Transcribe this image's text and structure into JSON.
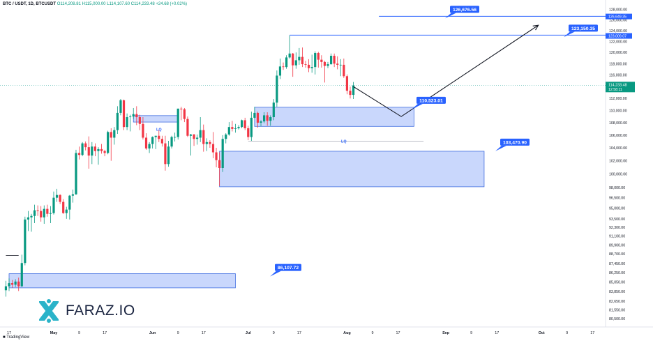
{
  "header": {
    "symbol": "BTC / USDT, 1D, BTCUSDT",
    "ohlc": "O114,208.81 H115,000.00 L114,107.60 C114,233.48 +24.68 (+0.02%)"
  },
  "brand": {
    "logo_text": "FARAZ.IO",
    "footer": "TradingView"
  },
  "chart_data": {
    "type": "candlestick",
    "y_scale": "log",
    "ylim": [
      80500,
      128200
    ],
    "y_ticks": [
      "128,000.00",
      "126,000.00",
      "124,000.00",
      "122,000.00",
      "120,000.00",
      "118,000.00",
      "116,000.00",
      "114,000.00",
      "112,000.00",
      "110,000.00",
      "108,000.00",
      "106,000.00",
      "104,000.00",
      "102,000.00",
      "100,000.00",
      "98,000.00",
      "96,500.00",
      "95,000.00",
      "93,500.00",
      "92,300.00",
      "91,100.00",
      "89,900.00",
      "88,700.00",
      "87,450.00",
      "86,250.00",
      "85,050.00",
      "83,850.00",
      "82,650.00",
      "81,550.00",
      "80,500.00"
    ],
    "y_tick_values": [
      128000,
      126000,
      124000,
      122000,
      120000,
      118000,
      116000,
      114000,
      112000,
      110000,
      108000,
      106000,
      104000,
      102000,
      100000,
      98000,
      96500,
      95000,
      93500,
      92300,
      91100,
      89900,
      88700,
      87450,
      86250,
      85050,
      83850,
      82650,
      81550,
      80500
    ],
    "x_ticks": [
      "17",
      "May",
      "9",
      "17",
      "Jun",
      "9",
      "17",
      "Jul",
      "9",
      "17",
      "Aug",
      "9",
      "17",
      "Sep",
      "9",
      "17",
      "Oct",
      "9",
      "17"
    ],
    "x_tick_dates": [
      "2025-04-17",
      "2025-05-01",
      "2025-05-09",
      "2025-05-17",
      "2025-06-01",
      "2025-06-09",
      "2025-06-17",
      "2025-07-01",
      "2025-07-09",
      "2025-07-17",
      "2025-08-01",
      "2025-08-09",
      "2025-08-17",
      "2025-09-01",
      "2025-09-09",
      "2025-09-17",
      "2025-10-01",
      "2025-10-09",
      "2025-10-17"
    ],
    "price_badge": {
      "value": "114,233.48",
      "countdown": "12:58:11",
      "price": 114233.48
    },
    "axis_labels": [
      {
        "text": "126,649.35",
        "value": 126649.35
      },
      {
        "text": "123,009.07",
        "value": 123009.07
      }
    ],
    "levels": [
      {
        "label": "126,676.56",
        "price": 126676.56,
        "from": "2025-08-11",
        "to": "2025-10-25"
      },
      {
        "label": "123,150.35",
        "price": 123150.35,
        "from": "2025-07-14",
        "to": "2025-10-25"
      }
    ],
    "zones": [
      {
        "label": "110,523.01",
        "top": 110523.01,
        "bottom": 107400,
        "from": "2025-07-03",
        "to": "2025-08-22"
      },
      {
        "label": "103,470.90",
        "top": 103470.9,
        "bottom": 98100,
        "from": "2025-06-22",
        "to": "2025-09-13"
      },
      {
        "label": "86,107.72",
        "top": 86107.72,
        "bottom": 84300,
        "from": "2025-04-17",
        "to": "2025-06-27"
      },
      {
        "label": "",
        "top": 109150,
        "bottom": 108100,
        "from": "2025-05-26",
        "to": "2025-06-09"
      }
    ],
    "lq_marks": [
      {
        "label": "LQ",
        "date": "2025-06-03",
        "price": 106920
      },
      {
        "label": "LQ",
        "date": "2025-07-31",
        "price": 105050
      }
    ],
    "lq_line": {
      "price": 105050,
      "from": "2025-07-01",
      "to": "2025-08-25"
    },
    "current_line": {
      "price": 114233.48
    },
    "left_line": {
      "price": 88500,
      "from": "2025-04-16",
      "to": "2025-04-20"
    },
    "projection": [
      {
        "date": "2025-08-03",
        "price": 114000
      },
      {
        "date": "2025-08-18",
        "price": 109000
      },
      {
        "date": "2025-09-30",
        "price": 125000
      }
    ],
    "candles": [
      {
        "d": "2025-04-16",
        "o": 84000,
        "h": 85200,
        "l": 83200,
        "c": 84500
      },
      {
        "d": "2025-04-17",
        "o": 84500,
        "h": 85500,
        "l": 83900,
        "c": 84900
      },
      {
        "d": "2025-04-18",
        "o": 84900,
        "h": 85300,
        "l": 84300,
        "c": 84700
      },
      {
        "d": "2025-04-19",
        "o": 84700,
        "h": 85400,
        "l": 84400,
        "c": 85100
      },
      {
        "d": "2025-04-20",
        "o": 85100,
        "h": 85600,
        "l": 83900,
        "c": 84500
      },
      {
        "d": "2025-04-21",
        "o": 84500,
        "h": 88600,
        "l": 84400,
        "c": 87500
      },
      {
        "d": "2025-04-22",
        "o": 87500,
        "h": 93800,
        "l": 87200,
        "c": 93400
      },
      {
        "d": "2025-04-23",
        "o": 93400,
        "h": 94600,
        "l": 91800,
        "c": 93700
      },
      {
        "d": "2025-04-24",
        "o": 93700,
        "h": 94200,
        "l": 91700,
        "c": 93900
      },
      {
        "d": "2025-04-25",
        "o": 93900,
        "h": 95500,
        "l": 92900,
        "c": 94700
      },
      {
        "d": "2025-04-26",
        "o": 94700,
        "h": 95400,
        "l": 93900,
        "c": 94600
      },
      {
        "d": "2025-04-27",
        "o": 94600,
        "h": 95300,
        "l": 93100,
        "c": 93700
      },
      {
        "d": "2025-04-28",
        "o": 93700,
        "h": 95400,
        "l": 92800,
        "c": 94900
      },
      {
        "d": "2025-04-29",
        "o": 94900,
        "h": 95500,
        "l": 93800,
        "c": 94200
      },
      {
        "d": "2025-04-30",
        "o": 94200,
        "h": 95300,
        "l": 92900,
        "c": 94300
      },
      {
        "d": "2025-05-01",
        "o": 94300,
        "h": 97400,
        "l": 94100,
        "c": 96500
      },
      {
        "d": "2025-05-02",
        "o": 96500,
        "h": 97800,
        "l": 95900,
        "c": 96900
      },
      {
        "d": "2025-05-03",
        "o": 96900,
        "h": 97000,
        "l": 95600,
        "c": 95900
      },
      {
        "d": "2025-05-04",
        "o": 95900,
        "h": 96300,
        "l": 94200,
        "c": 94300
      },
      {
        "d": "2025-05-05",
        "o": 94300,
        "h": 95200,
        "l": 93500,
        "c": 94800
      },
      {
        "d": "2025-05-06",
        "o": 94800,
        "h": 96900,
        "l": 93400,
        "c": 96800
      },
      {
        "d": "2025-05-07",
        "o": 96800,
        "h": 97700,
        "l": 95800,
        "c": 97000
      },
      {
        "d": "2025-05-08",
        "o": 97000,
        "h": 103700,
        "l": 96900,
        "c": 103200
      },
      {
        "d": "2025-05-09",
        "o": 103200,
        "h": 104200,
        "l": 102200,
        "c": 102900
      },
      {
        "d": "2025-05-10",
        "o": 102900,
        "h": 104900,
        "l": 102700,
        "c": 104700
      },
      {
        "d": "2025-05-11",
        "o": 104700,
        "h": 105000,
        "l": 103600,
        "c": 104100
      },
      {
        "d": "2025-05-12",
        "o": 104100,
        "h": 105800,
        "l": 100800,
        "c": 102800
      },
      {
        "d": "2025-05-13",
        "o": 102800,
        "h": 104900,
        "l": 101500,
        "c": 104200
      },
      {
        "d": "2025-05-14",
        "o": 104200,
        "h": 104700,
        "l": 102700,
        "c": 103500
      },
      {
        "d": "2025-05-15",
        "o": 103500,
        "h": 104100,
        "l": 101400,
        "c": 103800
      },
      {
        "d": "2025-05-16",
        "o": 103800,
        "h": 104600,
        "l": 103100,
        "c": 103500
      },
      {
        "d": "2025-05-17",
        "o": 103500,
        "h": 103700,
        "l": 102700,
        "c": 103200
      },
      {
        "d": "2025-05-18",
        "o": 103200,
        "h": 106700,
        "l": 103000,
        "c": 106500
      },
      {
        "d": "2025-05-19",
        "o": 106500,
        "h": 107100,
        "l": 102000,
        "c": 105600
      },
      {
        "d": "2025-05-20",
        "o": 105600,
        "h": 107300,
        "l": 104500,
        "c": 106800
      },
      {
        "d": "2025-05-21",
        "o": 106800,
        "h": 110700,
        "l": 106200,
        "c": 109600
      },
      {
        "d": "2025-05-22",
        "o": 109600,
        "h": 111900,
        "l": 109200,
        "c": 111700
      },
      {
        "d": "2025-05-23",
        "o": 111700,
        "h": 111800,
        "l": 106800,
        "c": 107300
      },
      {
        "d": "2025-05-24",
        "o": 107300,
        "h": 109500,
        "l": 106800,
        "c": 108900
      },
      {
        "d": "2025-05-25",
        "o": 108900,
        "h": 109300,
        "l": 106600,
        "c": 109000
      },
      {
        "d": "2025-05-26",
        "o": 109000,
        "h": 110400,
        "l": 108600,
        "c": 109400
      },
      {
        "d": "2025-05-27",
        "o": 109400,
        "h": 110700,
        "l": 107600,
        "c": 108900
      },
      {
        "d": "2025-05-28",
        "o": 108900,
        "h": 109300,
        "l": 106800,
        "c": 107800
      },
      {
        "d": "2025-05-29",
        "o": 107800,
        "h": 108900,
        "l": 105300,
        "c": 105600
      },
      {
        "d": "2025-05-30",
        "o": 105600,
        "h": 106300,
        "l": 103700,
        "c": 103900
      },
      {
        "d": "2025-05-31",
        "o": 103900,
        "h": 104900,
        "l": 103200,
        "c": 104600
      },
      {
        "d": "2025-06-01",
        "o": 104600,
        "h": 105800,
        "l": 103900,
        "c": 105700
      },
      {
        "d": "2025-06-02",
        "o": 105700,
        "h": 105900,
        "l": 103800,
        "c": 105900
      },
      {
        "d": "2025-06-03",
        "o": 105900,
        "h": 106800,
        "l": 104900,
        "c": 105400
      },
      {
        "d": "2025-06-04",
        "o": 105400,
        "h": 105900,
        "l": 104200,
        "c": 104700
      },
      {
        "d": "2025-06-05",
        "o": 104700,
        "h": 105900,
        "l": 100500,
        "c": 101500
      },
      {
        "d": "2025-06-06",
        "o": 101500,
        "h": 105100,
        "l": 101100,
        "c": 104200
      },
      {
        "d": "2025-06-07",
        "o": 104200,
        "h": 105900,
        "l": 103900,
        "c": 105700
      },
      {
        "d": "2025-06-08",
        "o": 105700,
        "h": 106400,
        "l": 105000,
        "c": 105700
      },
      {
        "d": "2025-06-09",
        "o": 105700,
        "h": 110300,
        "l": 105300,
        "c": 110300
      },
      {
        "d": "2025-06-10",
        "o": 110300,
        "h": 110600,
        "l": 108400,
        "c": 110200
      },
      {
        "d": "2025-06-11",
        "o": 110200,
        "h": 110400,
        "l": 108100,
        "c": 108600
      },
      {
        "d": "2025-06-12",
        "o": 108600,
        "h": 109000,
        "l": 105700,
        "c": 105900
      },
      {
        "d": "2025-06-13",
        "o": 105900,
        "h": 106200,
        "l": 102800,
        "c": 106100
      },
      {
        "d": "2025-06-14",
        "o": 106100,
        "h": 106200,
        "l": 104300,
        "c": 105400
      },
      {
        "d": "2025-06-15",
        "o": 105400,
        "h": 106100,
        "l": 104500,
        "c": 105600
      },
      {
        "d": "2025-06-16",
        "o": 105600,
        "h": 108900,
        "l": 104900,
        "c": 106800
      },
      {
        "d": "2025-06-17",
        "o": 106800,
        "h": 107700,
        "l": 103400,
        "c": 104600
      },
      {
        "d": "2025-06-18",
        "o": 104600,
        "h": 105500,
        "l": 103500,
        "c": 104900
      },
      {
        "d": "2025-06-19",
        "o": 104900,
        "h": 105200,
        "l": 104000,
        "c": 104600
      },
      {
        "d": "2025-06-20",
        "o": 104600,
        "h": 106500,
        "l": 102400,
        "c": 103300
      },
      {
        "d": "2025-06-21",
        "o": 103300,
        "h": 104000,
        "l": 101000,
        "c": 102100
      },
      {
        "d": "2025-06-22",
        "o": 102100,
        "h": 103300,
        "l": 98200,
        "c": 100900
      },
      {
        "d": "2025-06-23",
        "o": 100900,
        "h": 106000,
        "l": 100300,
        "c": 105400
      },
      {
        "d": "2025-06-24",
        "o": 105400,
        "h": 106300,
        "l": 104700,
        "c": 106100
      },
      {
        "d": "2025-06-25",
        "o": 106100,
        "h": 108100,
        "l": 105900,
        "c": 107300
      },
      {
        "d": "2025-06-26",
        "o": 107300,
        "h": 108300,
        "l": 106600,
        "c": 107000
      },
      {
        "d": "2025-06-27",
        "o": 107000,
        "h": 107800,
        "l": 106400,
        "c": 107100
      },
      {
        "d": "2025-06-28",
        "o": 107100,
        "h": 107600,
        "l": 106900,
        "c": 107300
      },
      {
        "d": "2025-06-29",
        "o": 107300,
        "h": 108500,
        "l": 107100,
        "c": 108400
      },
      {
        "d": "2025-06-30",
        "o": 108400,
        "h": 108800,
        "l": 106800,
        "c": 107100
      },
      {
        "d": "2025-07-01",
        "o": 107100,
        "h": 107500,
        "l": 105200,
        "c": 105700
      },
      {
        "d": "2025-07-02",
        "o": 105700,
        "h": 109800,
        "l": 105100,
        "c": 108800
      },
      {
        "d": "2025-07-03",
        "o": 108800,
        "h": 110600,
        "l": 108600,
        "c": 109600
      },
      {
        "d": "2025-07-04",
        "o": 109600,
        "h": 109800,
        "l": 107200,
        "c": 108000
      },
      {
        "d": "2025-07-05",
        "o": 108000,
        "h": 108400,
        "l": 107400,
        "c": 108200
      },
      {
        "d": "2025-07-06",
        "o": 108200,
        "h": 109700,
        "l": 107900,
        "c": 109200
      },
      {
        "d": "2025-07-07",
        "o": 109200,
        "h": 109700,
        "l": 107500,
        "c": 108300
      },
      {
        "d": "2025-07-08",
        "o": 108300,
        "h": 109200,
        "l": 107500,
        "c": 108900
      },
      {
        "d": "2025-07-09",
        "o": 108900,
        "h": 111900,
        "l": 108400,
        "c": 111300
      },
      {
        "d": "2025-07-10",
        "o": 111300,
        "h": 116800,
        "l": 110600,
        "c": 115900
      },
      {
        "d": "2025-07-11",
        "o": 115900,
        "h": 118900,
        "l": 115300,
        "c": 117500
      },
      {
        "d": "2025-07-12",
        "o": 117500,
        "h": 118200,
        "l": 116900,
        "c": 117400
      },
      {
        "d": "2025-07-13",
        "o": 117400,
        "h": 119500,
        "l": 117100,
        "c": 119100
      },
      {
        "d": "2025-07-14",
        "o": 119100,
        "h": 123100,
        "l": 118900,
        "c": 119800
      },
      {
        "d": "2025-07-15",
        "o": 119800,
        "h": 119900,
        "l": 115700,
        "c": 117700
      },
      {
        "d": "2025-07-16",
        "o": 117700,
        "h": 120000,
        "l": 117100,
        "c": 118600
      },
      {
        "d": "2025-07-17",
        "o": 118600,
        "h": 120800,
        "l": 117800,
        "c": 119200
      },
      {
        "d": "2025-07-18",
        "o": 119200,
        "h": 120900,
        "l": 117400,
        "c": 117900
      },
      {
        "d": "2025-07-19",
        "o": 117900,
        "h": 118500,
        "l": 117300,
        "c": 117800
      },
      {
        "d": "2025-07-20",
        "o": 117800,
        "h": 118800,
        "l": 116500,
        "c": 117200
      },
      {
        "d": "2025-07-21",
        "o": 117200,
        "h": 119600,
        "l": 116400,
        "c": 117400
      },
      {
        "d": "2025-07-22",
        "o": 117400,
        "h": 120200,
        "l": 116100,
        "c": 119900
      },
      {
        "d": "2025-07-23",
        "o": 119900,
        "h": 120100,
        "l": 117300,
        "c": 118700
      },
      {
        "d": "2025-07-24",
        "o": 118700,
        "h": 119500,
        "l": 117300,
        "c": 118300
      },
      {
        "d": "2025-07-25",
        "o": 118300,
        "h": 118500,
        "l": 114700,
        "c": 117600
      },
      {
        "d": "2025-07-26",
        "o": 117600,
        "h": 118300,
        "l": 117200,
        "c": 117900
      },
      {
        "d": "2025-07-27",
        "o": 117900,
        "h": 119800,
        "l": 117800,
        "c": 119400
      },
      {
        "d": "2025-07-28",
        "o": 119400,
        "h": 119800,
        "l": 117400,
        "c": 118000
      },
      {
        "d": "2025-07-29",
        "o": 118000,
        "h": 119300,
        "l": 117000,
        "c": 117800
      },
      {
        "d": "2025-07-30",
        "o": 117800,
        "h": 118800,
        "l": 115800,
        "c": 117800
      },
      {
        "d": "2025-07-31",
        "o": 117800,
        "h": 118900,
        "l": 115500,
        "c": 115800
      },
      {
        "d": "2025-08-01",
        "o": 115800,
        "h": 116100,
        "l": 112700,
        "c": 113300
      },
      {
        "d": "2025-08-02",
        "o": 113300,
        "h": 114000,
        "l": 112000,
        "c": 112600
      },
      {
        "d": "2025-08-03",
        "o": 112600,
        "h": 114800,
        "l": 111900,
        "c": 114200
      }
    ]
  }
}
